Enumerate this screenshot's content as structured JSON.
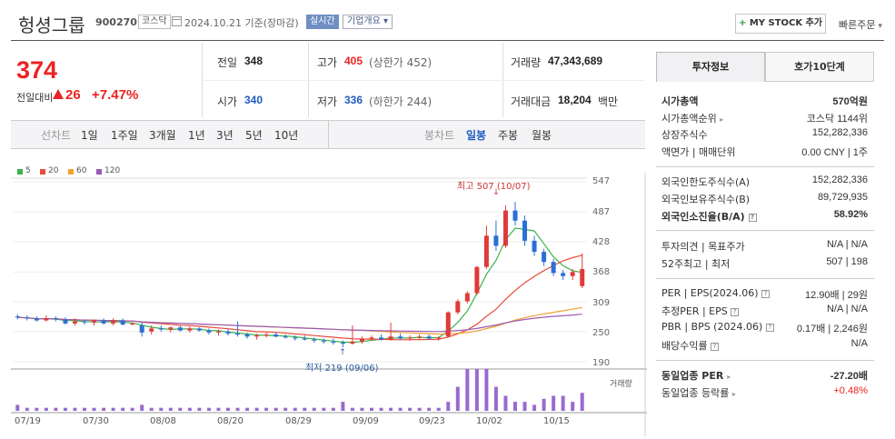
{
  "header": {
    "company_name": "헝셩그룹",
    "code": "900270",
    "market": "코스닥",
    "date": "2024.10.21 기준(장마감)",
    "realtime": "실시간",
    "company_info": "기업개요",
    "mystock_label": "MY STOCK 추가",
    "quick_order": "빠른주문"
  },
  "price": {
    "current": "374",
    "change_label": "전일대비",
    "change": "26",
    "change_pct": "+7.47%",
    "colors": {
      "up": "#ee2222",
      "down": "#1e5bbf"
    }
  },
  "quote": {
    "prev_close_label": "전일",
    "prev_close": "348",
    "high_label": "고가",
    "high": "405",
    "upper_limit": "(상한가 452)",
    "volume_label": "거래량",
    "volume": "47,343,689",
    "open_label": "시가",
    "open": "340",
    "low_label": "저가",
    "low": "336",
    "lower_limit": "(하한가 244)",
    "amount_label": "거래대금",
    "amount": "18,204",
    "amount_unit": "백만"
  },
  "period_tabs": {
    "line_chart": "선차트",
    "periods": [
      "1일",
      "1주일",
      "3개월",
      "1년",
      "3년",
      "5년",
      "10년"
    ],
    "candle_chart": "봉차트",
    "candle_periods": [
      "일봉",
      "주봉",
      "월봉"
    ],
    "active_candle": "일봉"
  },
  "legend": [
    {
      "label": "5",
      "color": "#3cb34a"
    },
    {
      "label": "20",
      "color": "#e84c3d"
    },
    {
      "label": "60",
      "color": "#f0a030"
    },
    {
      "label": "120",
      "color": "#9b59b6"
    }
  ],
  "chart_data": {
    "type": "candlestick",
    "y_ticks": [
      "547",
      "487",
      "428",
      "368",
      "309",
      "250",
      "190"
    ],
    "ylim": [
      190,
      547
    ],
    "x_ticks": [
      "07/19",
      "07/30",
      "08/08",
      "08/20",
      "08/29",
      "09/09",
      "09/23",
      "10/02",
      "10/15"
    ],
    "high_annotation": "최고 507 (10/07)",
    "low_annotation": "최저 219 (09/06)",
    "volume_label": "거래량",
    "candles": [
      [
        280,
        284,
        274,
        278
      ],
      [
        278,
        282,
        272,
        276
      ],
      [
        276,
        280,
        270,
        272
      ],
      [
        272,
        282,
        270,
        276
      ],
      [
        276,
        280,
        270,
        274
      ],
      [
        274,
        278,
        264,
        266
      ],
      [
        266,
        276,
        262,
        270
      ],
      [
        270,
        274,
        264,
        268
      ],
      [
        268,
        274,
        262,
        272
      ],
      [
        272,
        276,
        264,
        266
      ],
      [
        266,
        276,
        262,
        272
      ],
      [
        272,
        276,
        262,
        264
      ],
      [
        264,
        268,
        262,
        266
      ],
      [
        262,
        268,
        240,
        248
      ],
      [
        250,
        262,
        244,
        256
      ],
      [
        256,
        262,
        250,
        254
      ],
      [
        254,
        260,
        248,
        258
      ],
      [
        258,
        262,
        250,
        252
      ],
      [
        252,
        260,
        248,
        256
      ],
      [
        256,
        258,
        250,
        252
      ],
      [
        252,
        256,
        244,
        248
      ],
      [
        248,
        254,
        242,
        250
      ],
      [
        250,
        254,
        242,
        246
      ],
      [
        246,
        270,
        240,
        244
      ],
      [
        244,
        248,
        236,
        240
      ],
      [
        240,
        246,
        234,
        242
      ],
      [
        242,
        248,
        238,
        244
      ],
      [
        244,
        248,
        238,
        240
      ],
      [
        240,
        244,
        236,
        238
      ],
      [
        238,
        242,
        232,
        236
      ],
      [
        236,
        242,
        232,
        234
      ],
      [
        234,
        238,
        228,
        232
      ],
      [
        232,
        236,
        226,
        230
      ],
      [
        230,
        236,
        224,
        228
      ],
      [
        228,
        232,
        219,
        226
      ],
      [
        226,
        262,
        224,
        230
      ],
      [
        230,
        240,
        226,
        236
      ],
      [
        236,
        242,
        232,
        238
      ],
      [
        238,
        244,
        232,
        234
      ],
      [
        234,
        268,
        232,
        240
      ],
      [
        240,
        246,
        234,
        236
      ],
      [
        236,
        242,
        232,
        238
      ],
      [
        238,
        244,
        234,
        240
      ],
      [
        240,
        244,
        234,
        236
      ],
      [
        236,
        240,
        232,
        238
      ],
      [
        240,
        290,
        238,
        288
      ],
      [
        288,
        314,
        284,
        310
      ],
      [
        310,
        330,
        306,
        326
      ],
      [
        326,
        380,
        322,
        378
      ],
      [
        378,
        460,
        374,
        440
      ],
      [
        440,
        470,
        410,
        420
      ],
      [
        420,
        500,
        416,
        490
      ],
      [
        490,
        507,
        460,
        470
      ],
      [
        470,
        480,
        420,
        430
      ],
      [
        430,
        440,
        400,
        408
      ],
      [
        408,
        414,
        380,
        388
      ],
      [
        388,
        394,
        360,
        366
      ],
      [
        366,
        372,
        352,
        360
      ],
      [
        360,
        374,
        352,
        368
      ],
      [
        340,
        405,
        336,
        374
      ]
    ],
    "volume": [
      2,
      1,
      1,
      1,
      1,
      1,
      1,
      1,
      1,
      1,
      1,
      1,
      1,
      2,
      1,
      1,
      1,
      1,
      1,
      1,
      1,
      1,
      1,
      1,
      1,
      1,
      1,
      1,
      1,
      1,
      1,
      1,
      1,
      1,
      3,
      1,
      1,
      1,
      1,
      1,
      1,
      1,
      1,
      1,
      1,
      3,
      8,
      14,
      14,
      14,
      8,
      5,
      3,
      3,
      2,
      4,
      5,
      5,
      3,
      6
    ]
  },
  "right_panel": {
    "tabs": [
      "투자정보",
      "호가10단계"
    ],
    "market_cap_label": "시가총액",
    "market_cap": "570억원",
    "cap_rank_label": "시가총액순위",
    "cap_rank": "코스닥 1144위",
    "shares_label": "상장주식수",
    "shares": "152,282,336",
    "par_label": "액면가 | 매매단위",
    "par": "0.00 CNY | 1주",
    "foreign_limit_label": "외국인한도주식수(A)",
    "foreign_limit": "152,282,336",
    "foreign_hold_label": "외국인보유주식수(B)",
    "foreign_hold": "89,729,935",
    "foreign_ratio_label": "외국인소진율(B/A)",
    "foreign_ratio": "58.92%",
    "opinion_label": "투자의견 | 목표주가",
    "opinion": "N/A | N/A",
    "week52_label": "52주최고 | 최저",
    "week52": "507 | 198",
    "per_label": "PER | EPS(2024.06)",
    "per": "12.90배 | 29원",
    "est_per_label": "추정PER | EPS",
    "est_per": "N/A | N/A",
    "pbr_label": "PBR | BPS (2024.06)",
    "pbr": "0.17배 | 2,246원",
    "div_label": "배당수익률",
    "div": "N/A",
    "sector_per_label": "동일업종 PER",
    "sector_per": "-27.20배",
    "sector_chg_label": "동일업종 등락률",
    "sector_chg": "+0.48%"
  }
}
